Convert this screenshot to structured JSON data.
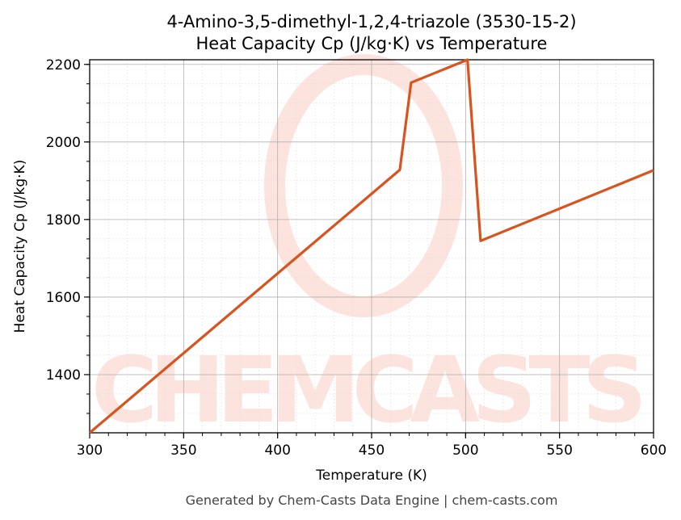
{
  "chart_data": {
    "type": "line",
    "title": "4-Amino-3,5-dimethyl-1,2,4-triazole (3530-15-2)",
    "subtitle": "Heat Capacity Cp (J/kg·K) vs Temperature",
    "xlabel": "Temperature (K)",
    "ylabel": "Heat Capacity Cp (J/kg·K)",
    "xlim": [
      300,
      600
    ],
    "ylim": [
      1250,
      2212
    ],
    "x_ticks": [
      300,
      350,
      400,
      450,
      500,
      550,
      600
    ],
    "y_ticks": [
      1400,
      1600,
      1800,
      2000,
      2200
    ],
    "grid": true,
    "legend": null,
    "series": [
      {
        "name": "Cp",
        "color": "#d9531e",
        "x": [
          300,
          465,
          471,
          501,
          508,
          600
        ],
        "y": [
          1250,
          1928,
          2153,
          2212,
          1745,
          1927
        ]
      }
    ]
  },
  "labels": {
    "title_line1": "4-Amino-3,5-dimethyl-1,2,4-triazole (3530-15-2)",
    "title_line2": "Heat Capacity Cp (J/kg·K) vs Temperature",
    "xlabel": "Temperature (K)",
    "ylabel": "Heat Capacity Cp (J/kg·K)",
    "footer": "Generated by Chem-Casts Data Engine | chem-casts.com",
    "watermark": "CHEMCASTS",
    "x_tick_labels": [
      "300",
      "350",
      "400",
      "450",
      "500",
      "550",
      "600"
    ],
    "y_tick_labels": [
      "1400",
      "1600",
      "1800",
      "2000",
      "2200"
    ]
  },
  "colors": {
    "line": "#d9531e",
    "watermark": "#fde0da",
    "grid_major": "#b0b0b0",
    "grid_minor": "#e0e0e0"
  }
}
